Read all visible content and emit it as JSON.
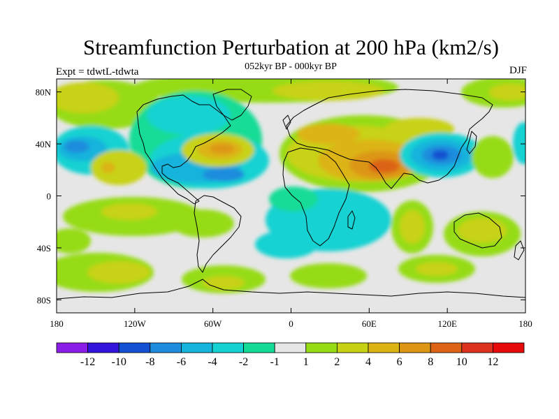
{
  "title": "Streamfunction Perturbation at 200 hPa (km2/s)",
  "subtitle": "052kyr BP - 000kyr BP",
  "left_label": "Expt = tdwtL-tdwta",
  "right_label": "DJF",
  "map_data": {
    "variable": "Streamfunction perturbation",
    "level": "200 hPa",
    "units": "km2/s",
    "projection": "cylindrical equidistant",
    "lon_range": [
      -180,
      180
    ],
    "lat_range": [
      -90,
      90
    ],
    "x_ticks": [
      {
        "value": -180,
        "label": "180"
      },
      {
        "value": -120,
        "label": "120W"
      },
      {
        "value": -60,
        "label": "60W"
      },
      {
        "value": 0,
        "label": "0"
      },
      {
        "value": 60,
        "label": "60E"
      },
      {
        "value": 120,
        "label": "120E"
      },
      {
        "value": 180,
        "label": "180"
      }
    ],
    "y_ticks": [
      {
        "value": 80,
        "label": "80N"
      },
      {
        "value": 40,
        "label": "40N"
      },
      {
        "value": 0,
        "label": "0"
      },
      {
        "value": -40,
        "label": "40S"
      },
      {
        "value": -80,
        "label": "80S"
      }
    ]
  },
  "colorbar": {
    "labels": [
      "-12",
      "-10",
      "-8",
      "-6",
      "-4",
      "-2",
      "-1",
      "1",
      "2",
      "4",
      "6",
      "8",
      "10",
      "12"
    ],
    "colors": [
      "#8a1ee6",
      "#3214dc",
      "#1450d2",
      "#1e8cdc",
      "#14b4dc",
      "#14d2d2",
      "#14dc96",
      "#e6e6e6",
      "#96dc14",
      "#c8d214",
      "#dcb414",
      "#dc9614",
      "#dc6414",
      "#dc321e",
      "#e60a0a"
    ]
  }
}
